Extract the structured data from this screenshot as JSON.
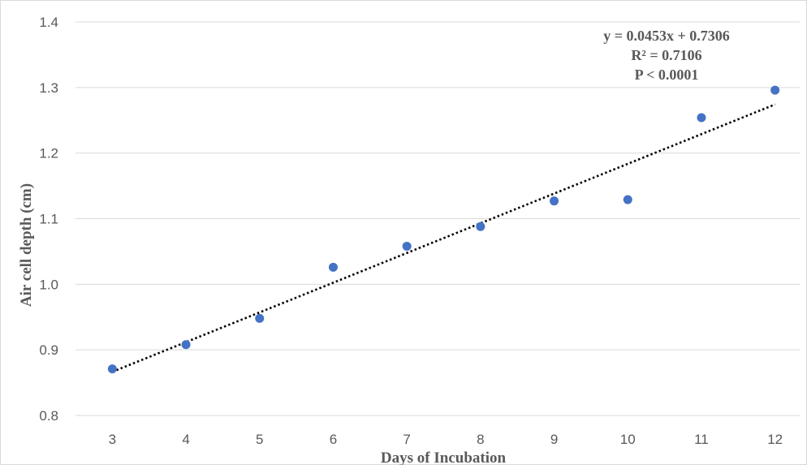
{
  "chart_data": {
    "type": "scatter",
    "xlabel": "Days of Incubation",
    "ylabel": "Air cell depth  (cm)",
    "xlim": [
      2.5,
      12.5
    ],
    "ylim": [
      0.8,
      1.4
    ],
    "x_ticks": [
      3,
      4,
      5,
      6,
      7,
      8,
      9,
      10,
      11,
      12
    ],
    "y_ticks": [
      "0.8",
      "0.9",
      "1.0",
      "1.1",
      "1.2",
      "1.3",
      "1.4"
    ],
    "grid": "horizontal",
    "series": [
      {
        "x": [
          3,
          4,
          5,
          6,
          7,
          8,
          9,
          10,
          11,
          12
        ],
        "y": [
          0.871,
          0.908,
          0.948,
          1.026,
          1.058,
          1.088,
          1.127,
          1.129,
          1.254,
          1.296
        ],
        "color": "#4472C4"
      }
    ],
    "trendline": {
      "slope": 0.0453,
      "intercept": 0.7306,
      "style": "dotted",
      "color": "#000000"
    },
    "annotation_lines": [
      "y = 0.0453x + 0.7306",
      "R² = 0.7106",
      "P < 0.0001"
    ]
  }
}
